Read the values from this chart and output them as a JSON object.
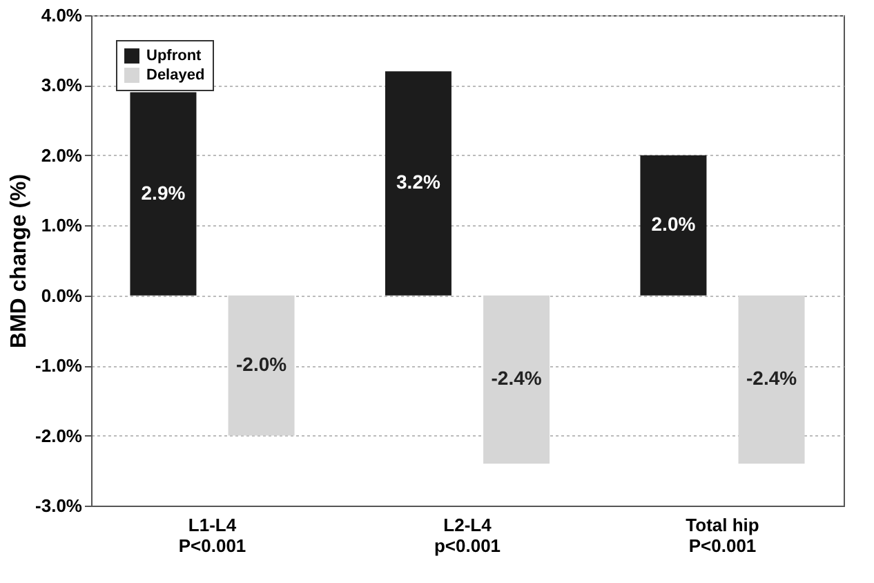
{
  "chart_data": {
    "type": "bar",
    "ylabel": "BMD change (%)",
    "categories": [
      "L1-L4\nP<0.001",
      "L2-L4\np<0.001",
      "Total hip\nP<0.001"
    ],
    "series": [
      {
        "name": "Upfront",
        "color": "#1c1c1c",
        "values": [
          2.9,
          3.2,
          2.0
        ],
        "value_labels": [
          "2.9%",
          "3.2%",
          "2.0%"
        ]
      },
      {
        "name": "Delayed",
        "color": "#d6d6d6",
        "values": [
          -2.0,
          -2.4,
          -2.4
        ],
        "value_labels": [
          "-2.0%",
          "-2.4%",
          "-2.4%"
        ]
      }
    ],
    "ylim": [
      -3,
      4
    ],
    "yticks": [
      {
        "value": -3,
        "label": "-3.0%"
      },
      {
        "value": -2,
        "label": "-2.0%"
      },
      {
        "value": -1,
        "label": "-1.0%"
      },
      {
        "value": 0,
        "label": "0.0%"
      },
      {
        "value": 1,
        "label": "1.0%"
      },
      {
        "value": 2,
        "label": "2.0%"
      },
      {
        "value": 3,
        "label": "3.0%"
      },
      {
        "value": 4,
        "label": "4.0%"
      }
    ],
    "grid": "y",
    "legend": "top left"
  }
}
